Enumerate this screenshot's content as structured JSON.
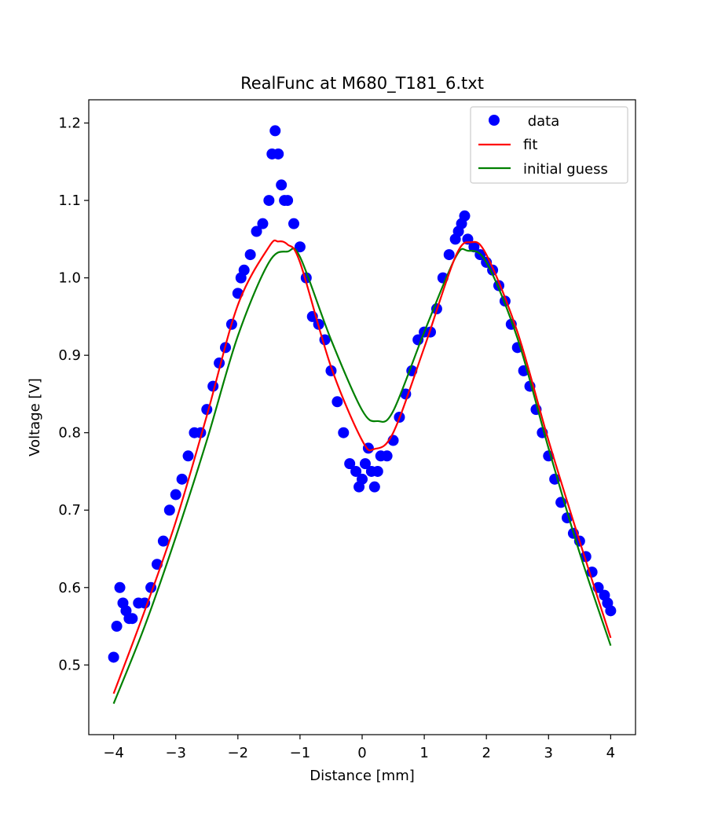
{
  "chart_data": {
    "type": "line",
    "title": "RealFunc at M680_T181_6.txt",
    "xlabel": "Distance [mm]",
    "ylabel": "Voltage [V]",
    "xlim": [
      -4.4,
      4.4
    ],
    "ylim": [
      0.41,
      1.23
    ],
    "x_ticks": [
      -4,
      -3,
      -2,
      -1,
      0,
      1,
      2,
      3,
      4
    ],
    "x_tick_labels": [
      "−4",
      "−3",
      "−2",
      "−1",
      "0",
      "1",
      "2",
      "3",
      "4"
    ],
    "y_ticks": [
      0.5,
      0.6,
      0.7,
      0.8,
      0.9,
      1.0,
      1.1,
      1.2
    ],
    "y_tick_labels": [
      "0.5",
      "0.6",
      "0.7",
      "0.8",
      "0.9",
      "1.0",
      "1.1",
      "1.2"
    ],
    "grid": false,
    "legend_position": "top-right",
    "colors": {
      "data": "#0000ff",
      "fit": "#ff0000",
      "initial_guess": "#008000"
    },
    "series": [
      {
        "name": " data",
        "style": "markers",
        "x": [
          -4.0,
          -3.95,
          -3.9,
          -3.85,
          -3.8,
          -3.75,
          -3.7,
          -3.6,
          -3.5,
          -3.4,
          -3.3,
          -3.2,
          -3.1,
          -3.0,
          -2.9,
          -2.8,
          -2.7,
          -2.6,
          -2.5,
          -2.4,
          -2.3,
          -2.2,
          -2.1,
          -2.0,
          -1.95,
          -1.9,
          -1.8,
          -1.7,
          -1.6,
          -1.5,
          -1.45,
          -1.4,
          -1.35,
          -1.3,
          -1.25,
          -1.2,
          -1.1,
          -1.0,
          -0.9,
          -0.8,
          -0.7,
          -0.6,
          -0.5,
          -0.4,
          -0.3,
          -0.2,
          -0.1,
          -0.05,
          0.0,
          0.05,
          0.1,
          0.15,
          0.2,
          0.25,
          0.3,
          0.4,
          0.5,
          0.6,
          0.7,
          0.8,
          0.9,
          1.0,
          1.1,
          1.2,
          1.3,
          1.4,
          1.5,
          1.55,
          1.6,
          1.65,
          1.7,
          1.8,
          1.9,
          2.0,
          2.1,
          2.2,
          2.3,
          2.4,
          2.5,
          2.6,
          2.7,
          2.8,
          2.9,
          3.0,
          3.1,
          3.2,
          3.3,
          3.4,
          3.5,
          3.6,
          3.7,
          3.8,
          3.9,
          3.95,
          4.0
        ],
        "y": [
          0.51,
          0.55,
          0.6,
          0.58,
          0.57,
          0.56,
          0.56,
          0.58,
          0.58,
          0.6,
          0.63,
          0.66,
          0.7,
          0.72,
          0.74,
          0.77,
          0.8,
          0.8,
          0.83,
          0.86,
          0.89,
          0.91,
          0.94,
          0.98,
          1.0,
          1.01,
          1.03,
          1.06,
          1.07,
          1.1,
          1.16,
          1.19,
          1.16,
          1.12,
          1.1,
          1.1,
          1.07,
          1.04,
          1.0,
          0.95,
          0.94,
          0.92,
          0.88,
          0.84,
          0.8,
          0.76,
          0.75,
          0.73,
          0.74,
          0.76,
          0.78,
          0.75,
          0.73,
          0.75,
          0.77,
          0.77,
          0.79,
          0.82,
          0.85,
          0.88,
          0.92,
          0.93,
          0.93,
          0.96,
          1.0,
          1.03,
          1.05,
          1.06,
          1.07,
          1.08,
          1.05,
          1.04,
          1.03,
          1.02,
          1.01,
          0.99,
          0.97,
          0.94,
          0.91,
          0.88,
          0.86,
          0.83,
          0.8,
          0.77,
          0.74,
          0.71,
          0.69,
          0.67,
          0.66,
          0.64,
          0.62,
          0.6,
          0.59,
          0.58,
          0.57
        ]
      },
      {
        "name": "fit",
        "style": "line",
        "x": [
          -4.0,
          -3.5,
          -3.0,
          -2.5,
          -2.0,
          -1.5,
          -1.35,
          -1.2,
          -1.0,
          -0.5,
          0.0,
          0.2,
          0.5,
          1.0,
          1.5,
          1.75,
          2.0,
          2.5,
          3.0,
          3.5,
          4.0
        ],
        "y": [
          0.463,
          0.57,
          0.685,
          0.822,
          0.965,
          1.04,
          1.047,
          1.043,
          1.02,
          0.885,
          0.79,
          0.779,
          0.8,
          0.91,
          1.027,
          1.046,
          1.03,
          0.93,
          0.79,
          0.66,
          0.535
        ]
      },
      {
        "name": "initial guess",
        "style": "line",
        "x": [
          -4.0,
          -3.5,
          -3.0,
          -2.5,
          -2.0,
          -1.5,
          -1.2,
          -1.0,
          -0.5,
          0.0,
          0.25,
          0.5,
          1.0,
          1.5,
          1.7,
          2.0,
          2.5,
          3.0,
          3.5,
          4.0
        ],
        "y": [
          0.45,
          0.55,
          0.665,
          0.79,
          0.925,
          1.02,
          1.034,
          1.027,
          0.92,
          0.829,
          0.815,
          0.828,
          0.93,
          1.026,
          1.035,
          1.02,
          0.922,
          0.78,
          0.645,
          0.525
        ]
      }
    ]
  }
}
